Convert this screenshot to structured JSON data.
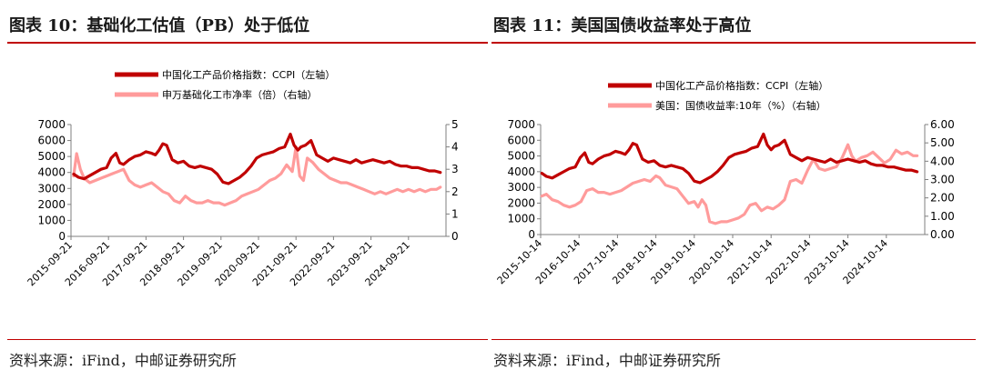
{
  "colors": {
    "ccpi": "#c00000",
    "secondary": "#ff9b9b",
    "rule": "#c00000"
  },
  "panels": [
    {
      "title": "图表 10：基础化工估值（PB）处于低位",
      "source": "资料来源：iFind，中邮证券研究所"
    },
    {
      "title": "图表 11：美国国债收益率处于高位",
      "source": "资料来源：iFind，中邮证券研究所"
    }
  ],
  "chart_data": [
    {
      "type": "line",
      "title": "",
      "xlabel": "",
      "x_ticks": [
        "2015-09-21",
        "2016-09-21",
        "2017-09-21",
        "2018-09-21",
        "2019-09-21",
        "2020-09-21",
        "2021-09-21",
        "2022-09-21",
        "2023-09-21",
        "2024-09-21"
      ],
      "x_range": [
        2015.65,
        2025.65
      ],
      "y_left": {
        "range": [
          0,
          7000
        ],
        "ticks": [
          "0",
          "1000",
          "2000",
          "3000",
          "4000",
          "5000",
          "6000",
          "7000"
        ],
        "label": ""
      },
      "y_right": {
        "range": [
          0,
          5
        ],
        "ticks": [
          "0",
          "1",
          "2",
          "3",
          "4",
          "5"
        ],
        "label": ""
      },
      "legend_position": "top",
      "grid": false,
      "series": [
        {
          "name": "中国化工产品价格指数：CCPI（左轴）",
          "axis": "left",
          "x": [
            2015.72,
            2015.85,
            2016.0,
            2016.15,
            2016.3,
            2016.45,
            2016.6,
            2016.72,
            2016.85,
            2016.95,
            2017.05,
            2017.2,
            2017.35,
            2017.5,
            2017.65,
            2017.8,
            2017.9,
            2018.0,
            2018.1,
            2018.2,
            2018.35,
            2018.5,
            2018.65,
            2018.8,
            2018.95,
            2019.1,
            2019.25,
            2019.4,
            2019.55,
            2019.7,
            2019.85,
            2020.0,
            2020.15,
            2020.3,
            2020.45,
            2020.6,
            2020.75,
            2020.9,
            2021.05,
            2021.2,
            2021.35,
            2021.5,
            2021.6,
            2021.7,
            2021.78,
            2021.9,
            2022.05,
            2022.2,
            2022.35,
            2022.5,
            2022.65,
            2022.8,
            2022.95,
            2023.1,
            2023.25,
            2023.4,
            2023.55,
            2023.7,
            2023.85,
            2024.0,
            2024.15,
            2024.3,
            2024.45,
            2024.6,
            2024.75,
            2024.9,
            2025.05,
            2025.2,
            2025.35,
            2025.5
          ],
          "values": [
            3900,
            3700,
            3600,
            3800,
            4000,
            4200,
            4300,
            4900,
            5200,
            4600,
            4500,
            4800,
            5000,
            5100,
            5300,
            5200,
            5100,
            5400,
            5800,
            5700,
            4800,
            4600,
            4700,
            4400,
            4300,
            4400,
            4300,
            4200,
            3900,
            3400,
            3300,
            3500,
            3700,
            4000,
            4400,
            4900,
            5100,
            5200,
            5300,
            5500,
            5600,
            6400,
            5700,
            5400,
            5600,
            5700,
            6000,
            5100,
            4900,
            4700,
            4900,
            4800,
            4700,
            4600,
            4800,
            4600,
            4700,
            4800,
            4700,
            4600,
            4700,
            4500,
            4400,
            4400,
            4300,
            4300,
            4200,
            4100,
            4100,
            4000
          ]
        },
        {
          "name": "申万基础化工市净率（倍）（右轴）",
          "axis": "right",
          "x": [
            2015.72,
            2015.8,
            2015.9,
            2016.0,
            2016.15,
            2016.3,
            2016.45,
            2016.6,
            2016.75,
            2016.9,
            2017.05,
            2017.2,
            2017.35,
            2017.5,
            2017.65,
            2017.8,
            2017.95,
            2018.1,
            2018.25,
            2018.4,
            2018.55,
            2018.7,
            2018.85,
            2019.0,
            2019.15,
            2019.3,
            2019.45,
            2019.6,
            2019.75,
            2019.9,
            2020.05,
            2020.2,
            2020.35,
            2020.5,
            2020.65,
            2020.8,
            2020.95,
            2021.1,
            2021.25,
            2021.4,
            2021.55,
            2021.65,
            2021.75,
            2021.85,
            2021.95,
            2022.1,
            2022.25,
            2022.4,
            2022.55,
            2022.7,
            2022.85,
            2023.0,
            2023.15,
            2023.3,
            2023.45,
            2023.6,
            2023.75,
            2023.9,
            2024.05,
            2024.2,
            2024.35,
            2024.5,
            2024.65,
            2024.8,
            2024.95,
            2025.1,
            2025.25,
            2025.4,
            2025.5
          ],
          "values": [
            2.7,
            3.7,
            3.0,
            2.6,
            2.4,
            2.5,
            2.6,
            2.7,
            2.8,
            2.9,
            3.0,
            2.5,
            2.3,
            2.2,
            2.3,
            2.4,
            2.2,
            2.0,
            1.9,
            1.6,
            1.5,
            1.8,
            1.6,
            1.5,
            1.5,
            1.6,
            1.5,
            1.5,
            1.4,
            1.5,
            1.6,
            1.8,
            1.9,
            2.0,
            2.1,
            2.3,
            2.5,
            2.6,
            2.8,
            3.2,
            2.9,
            4.0,
            2.7,
            2.5,
            3.5,
            3.3,
            3.0,
            2.8,
            2.6,
            2.5,
            2.4,
            2.4,
            2.3,
            2.2,
            2.1,
            2.0,
            1.9,
            2.0,
            1.9,
            2.0,
            2.1,
            2.0,
            2.1,
            2.0,
            2.1,
            2.0,
            2.1,
            2.1,
            2.2
          ]
        }
      ]
    },
    {
      "type": "line",
      "title": "",
      "xlabel": "",
      "x_ticks": [
        "2015-10-14",
        "2016-10-14",
        "2017-10-14",
        "2018-10-14",
        "2019-10-14",
        "2020-10-14",
        "2021-10-14",
        "2022-10-14",
        "2023-10-14",
        "2024-10-14"
      ],
      "x_range": [
        2015.75,
        2025.75
      ],
      "y_left": {
        "range": [
          0,
          7000
        ],
        "ticks": [
          "0",
          "1000",
          "2000",
          "3000",
          "4000",
          "5000",
          "6000",
          "7000"
        ],
        "label": ""
      },
      "y_right": {
        "range": [
          0,
          6
        ],
        "ticks": [
          "0.00",
          "1.00",
          "2.00",
          "3.00",
          "4.00",
          "5.00",
          "6.00"
        ],
        "label": ""
      },
      "legend_position": "top",
      "grid": false,
      "series": [
        {
          "name": "中国化工产品价格指数：CCPI（左轴）",
          "axis": "left",
          "x": [
            2015.78,
            2015.9,
            2016.05,
            2016.2,
            2016.35,
            2016.5,
            2016.65,
            2016.78,
            2016.9,
            2017.0,
            2017.1,
            2017.25,
            2017.4,
            2017.55,
            2017.7,
            2017.85,
            2017.95,
            2018.05,
            2018.15,
            2018.25,
            2018.4,
            2018.55,
            2018.7,
            2018.85,
            2019.0,
            2019.15,
            2019.3,
            2019.45,
            2019.6,
            2019.75,
            2019.9,
            2020.05,
            2020.2,
            2020.35,
            2020.5,
            2020.65,
            2020.8,
            2020.95,
            2021.1,
            2021.25,
            2021.4,
            2021.55,
            2021.65,
            2021.75,
            2021.83,
            2021.95,
            2022.1,
            2022.25,
            2022.4,
            2022.55,
            2022.7,
            2022.85,
            2023.0,
            2023.15,
            2023.3,
            2023.45,
            2023.6,
            2023.75,
            2023.9,
            2024.05,
            2024.2,
            2024.35,
            2024.5,
            2024.65,
            2024.8,
            2024.95,
            2025.1,
            2025.25,
            2025.4,
            2025.55
          ],
          "values": [
            3900,
            3700,
            3600,
            3800,
            4000,
            4200,
            4300,
            4900,
            5200,
            4600,
            4500,
            4800,
            5000,
            5100,
            5300,
            5200,
            5100,
            5400,
            5800,
            5700,
            4800,
            4600,
            4700,
            4400,
            4300,
            4400,
            4300,
            4200,
            3900,
            3400,
            3300,
            3500,
            3700,
            4000,
            4400,
            4900,
            5100,
            5200,
            5300,
            5500,
            5600,
            6400,
            5700,
            5400,
            5600,
            5700,
            6000,
            5100,
            4900,
            4700,
            4900,
            4800,
            4700,
            4600,
            4800,
            4600,
            4700,
            4800,
            4700,
            4600,
            4700,
            4500,
            4400,
            4400,
            4300,
            4300,
            4200,
            4100,
            4100,
            4000
          ]
        },
        {
          "name": "美国：国债收益率:10年（%）（右轴）",
          "axis": "right",
          "x": [
            2015.78,
            2015.9,
            2016.05,
            2016.2,
            2016.35,
            2016.5,
            2016.65,
            2016.8,
            2016.95,
            2017.1,
            2017.25,
            2017.4,
            2017.55,
            2017.7,
            2017.85,
            2018.0,
            2018.15,
            2018.3,
            2018.45,
            2018.6,
            2018.75,
            2018.85,
            2019.0,
            2019.15,
            2019.3,
            2019.45,
            2019.6,
            2019.75,
            2019.85,
            2019.95,
            2020.05,
            2020.15,
            2020.3,
            2020.45,
            2020.6,
            2020.75,
            2020.9,
            2021.05,
            2021.2,
            2021.35,
            2021.5,
            2021.65,
            2021.8,
            2021.95,
            2022.1,
            2022.25,
            2022.4,
            2022.55,
            2022.7,
            2022.85,
            2023.0,
            2023.15,
            2023.3,
            2023.45,
            2023.6,
            2023.75,
            2023.85,
            2023.95,
            2024.1,
            2024.25,
            2024.4,
            2024.55,
            2024.7,
            2024.85,
            2025.0,
            2025.15,
            2025.3,
            2025.45,
            2025.55
          ],
          "values": [
            2.1,
            2.2,
            1.9,
            1.8,
            1.6,
            1.5,
            1.6,
            1.8,
            2.4,
            2.5,
            2.3,
            2.3,
            2.2,
            2.3,
            2.4,
            2.6,
            2.8,
            2.9,
            3.0,
            2.9,
            3.2,
            3.1,
            2.7,
            2.6,
            2.5,
            2.1,
            1.7,
            1.8,
            1.5,
            1.9,
            1.6,
            0.7,
            0.6,
            0.7,
            0.7,
            0.8,
            0.9,
            1.1,
            1.6,
            1.7,
            1.3,
            1.5,
            1.4,
            1.6,
            1.9,
            2.9,
            3.0,
            2.8,
            3.5,
            4.1,
            3.6,
            3.5,
            3.6,
            3.7,
            4.2,
            4.9,
            4.3,
            4.0,
            4.2,
            4.3,
            4.5,
            4.2,
            3.9,
            4.1,
            4.6,
            4.4,
            4.5,
            4.3,
            4.3
          ]
        }
      ]
    }
  ]
}
